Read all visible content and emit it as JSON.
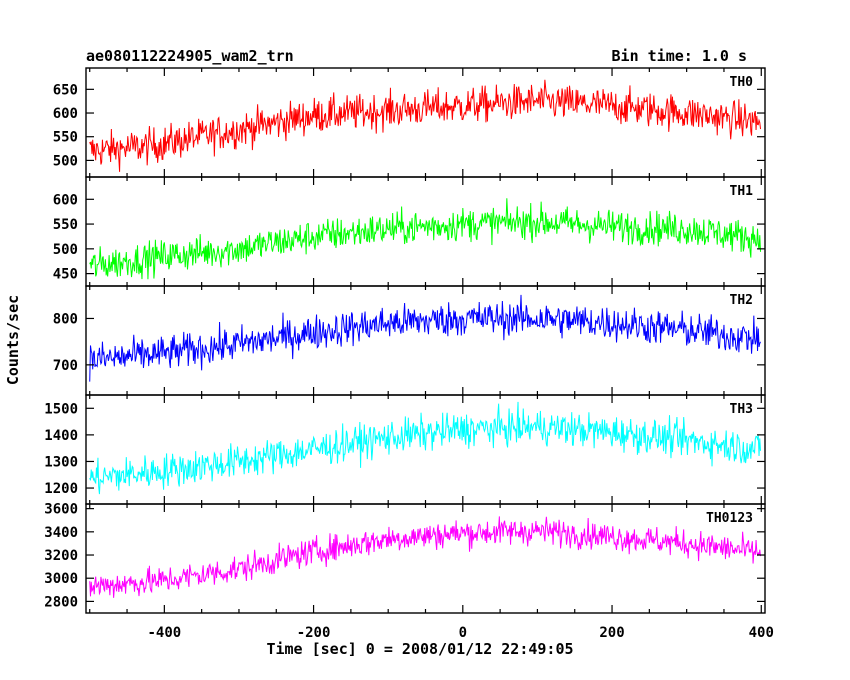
{
  "header": {
    "title": "ae080112224905_wam2_trn",
    "bin_time": "Bin time: 1.0 s"
  },
  "chart_data": {
    "type": "line",
    "xlabel": "Time [sec] 0 = 2008/01/12 22:49:05",
    "ylabel": "Counts/sec",
    "xlim": [
      -505,
      405
    ],
    "xticks": [
      -400,
      -200,
      0,
      200,
      400
    ],
    "time_range": [
      -500,
      399
    ],
    "bin": 1.0,
    "panels": [
      {
        "name": "TH0",
        "color": "#ff0000",
        "ylim": [
          465,
          695
        ],
        "yticks": [
          500,
          550,
          600,
          650
        ],
        "trend": {
          "x": [
            -500,
            -420,
            -300,
            -200,
            -100,
            0,
            100,
            200,
            300,
            400
          ],
          "y": [
            520,
            530,
            565,
            595,
            605,
            615,
            625,
            615,
            600,
            580
          ]
        },
        "noise": 30
      },
      {
        "name": "TH1",
        "color": "#00ff00",
        "ylim": [
          425,
          645
        ],
        "yticks": [
          450,
          500,
          550,
          600
        ],
        "trend": {
          "x": [
            -500,
            -400,
            -300,
            -200,
            -100,
            0,
            100,
            200,
            300,
            400
          ],
          "y": [
            465,
            485,
            500,
            525,
            540,
            550,
            555,
            545,
            540,
            520
          ]
        },
        "noise": 27
      },
      {
        "name": "TH2",
        "color": "#0000ff",
        "ylim": [
          635,
          870
        ],
        "yticks": [
          700,
          800
        ],
        "trend": {
          "x": [
            -500,
            -400,
            -300,
            -200,
            -100,
            0,
            100,
            200,
            300,
            400
          ],
          "y": [
            710,
            725,
            745,
            770,
            790,
            800,
            800,
            790,
            775,
            755
          ]
        },
        "noise": 30
      },
      {
        "name": "TH3",
        "color": "#00ffff",
        "ylim": [
          1140,
          1550
        ],
        "yticks": [
          1200,
          1300,
          1400,
          1500
        ],
        "trend": {
          "x": [
            -500,
            -400,
            -300,
            -200,
            -100,
            0,
            100,
            200,
            300,
            400
          ],
          "y": [
            1235,
            1265,
            1300,
            1345,
            1390,
            1420,
            1430,
            1410,
            1380,
            1345
          ]
        },
        "noise": 52
      },
      {
        "name": "TH0123",
        "color": "#ff00ff",
        "ylim": [
          2700,
          3640
        ],
        "yticks": [
          2800,
          3000,
          3200,
          3400,
          3600
        ],
        "trend": {
          "x": [
            -500,
            -400,
            -300,
            -200,
            -100,
            0,
            100,
            200,
            300,
            400
          ],
          "y": [
            2930,
            2980,
            3080,
            3230,
            3340,
            3390,
            3410,
            3360,
            3300,
            3220
          ]
        },
        "noise": 95
      }
    ]
  }
}
